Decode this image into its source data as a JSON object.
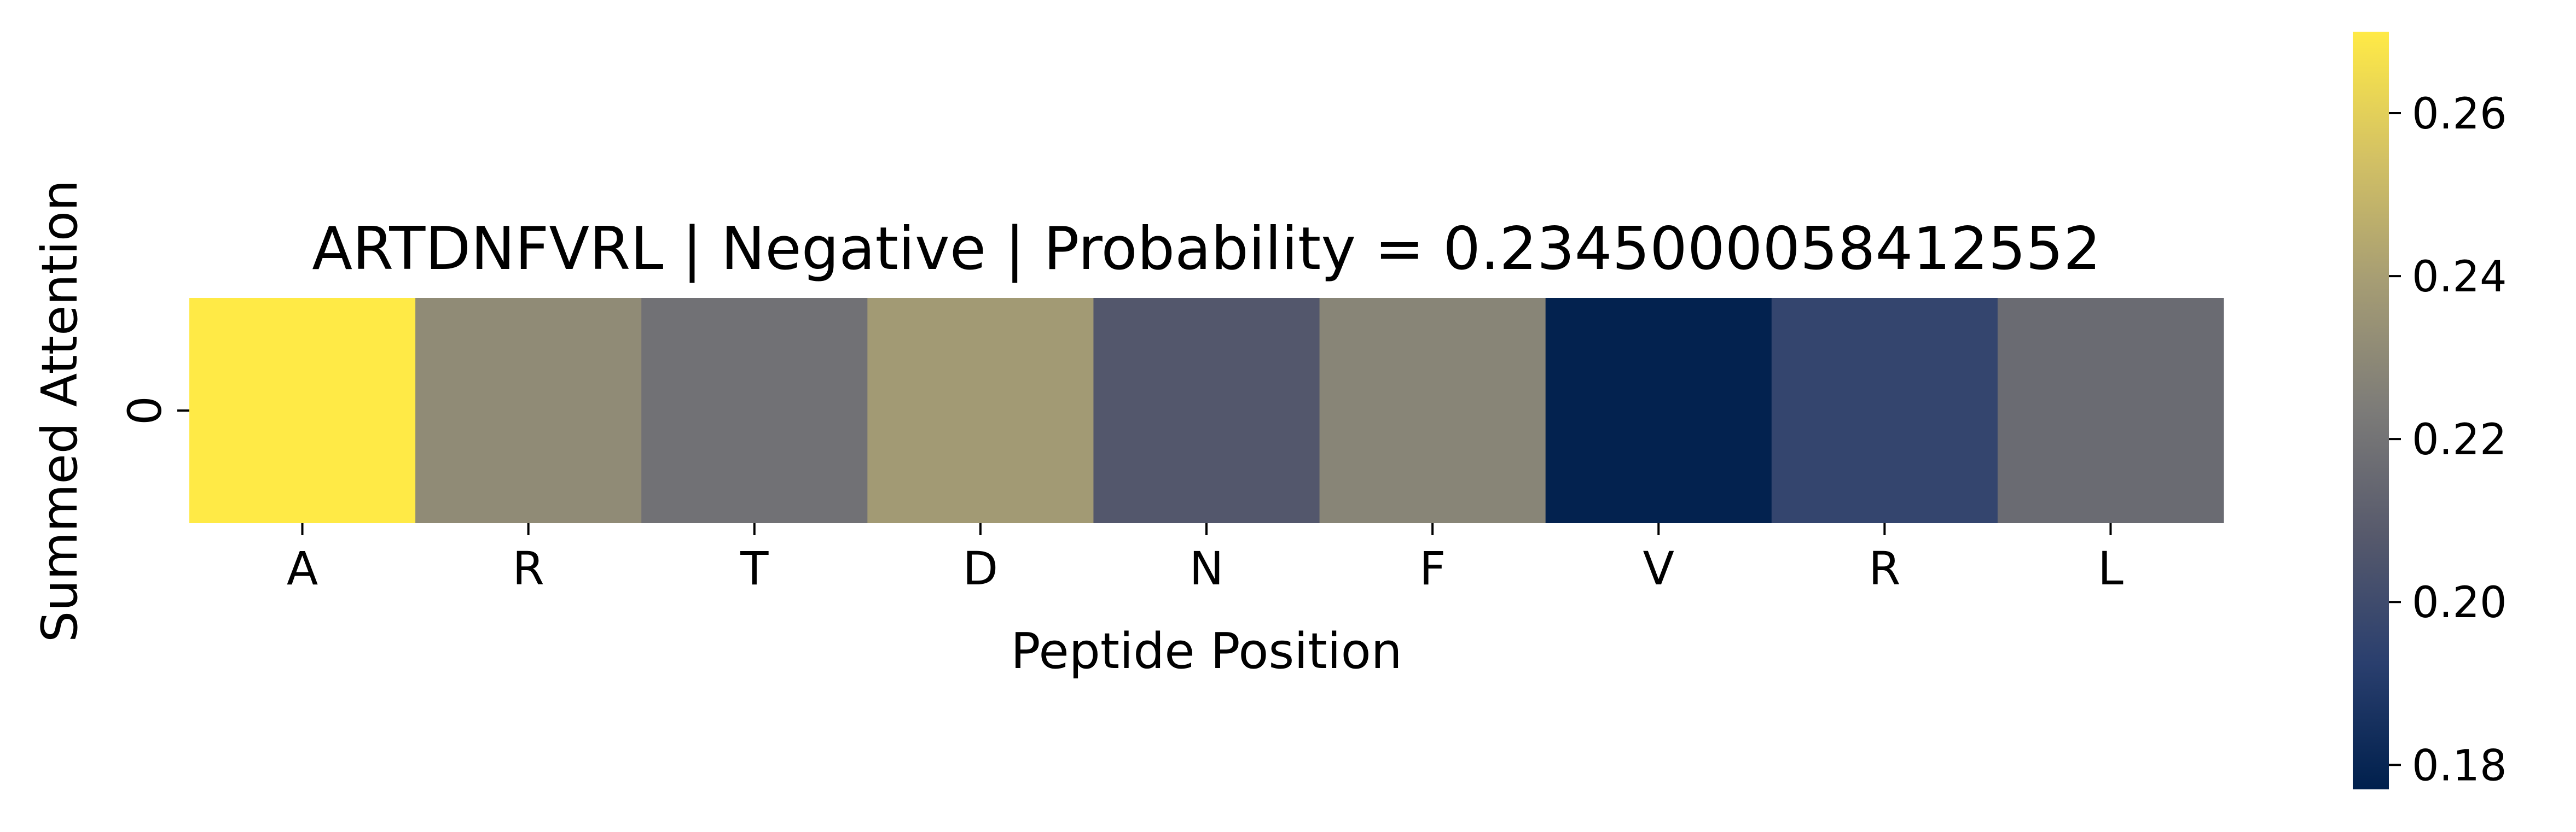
{
  "chart_data": {
    "type": "heatmap",
    "title": "ARTDNFVRL | Negative | Probability = 0.2345000058412552",
    "xlabel": "Peptide Position",
    "ylabel": "Summed Attention",
    "x_categories": [
      "A",
      "R",
      "T",
      "D",
      "N",
      "F",
      "V",
      "R",
      "L"
    ],
    "y_categories": [
      "0"
    ],
    "values": [
      [
        0.27,
        0.231,
        0.219,
        0.238,
        0.207,
        0.228,
        0.178,
        0.196,
        0.216
      ]
    ],
    "colormap": "cividis",
    "colorbar": {
      "range": [
        0.177,
        0.27
      ],
      "ticks": [
        0.18,
        0.2,
        0.22,
        0.24,
        0.26
      ],
      "tick_labels": [
        "0.18",
        "0.20",
        "0.22",
        "0.24",
        "0.26"
      ]
    },
    "colormap_stops": [
      "#00204d",
      "#2a3f6e",
      "#56596c",
      "#7c7b78",
      "#a59c74",
      "#d3c164",
      "#ffea46"
    ]
  }
}
